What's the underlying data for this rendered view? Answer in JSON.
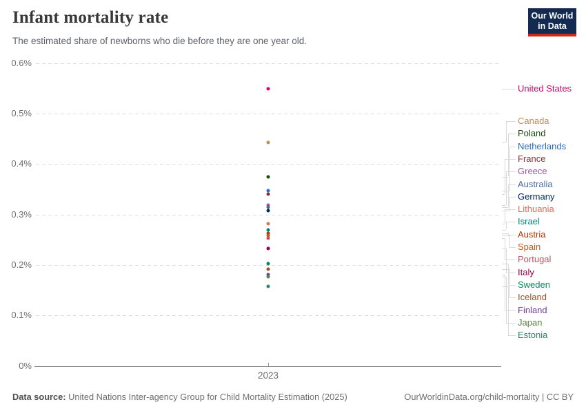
{
  "header": {
    "title": "Infant mortality rate",
    "subtitle": "The estimated share of newborns who die before they are one year old.",
    "logo": {
      "line1": "Our World",
      "line2": "in Data"
    }
  },
  "footer": {
    "source_label": "Data source:",
    "source_text": " United Nations Inter-agency Group for Child Mortality Estimation (2025)",
    "credit": "OurWorldinData.org/child-mortality | CC BY"
  },
  "chart_data": {
    "type": "scatter",
    "title": "Infant mortality rate",
    "subtitle": "The estimated share of newborns who die before they are one year old.",
    "xlabel": "",
    "ylabel": "",
    "unit": "%",
    "x": [
      2023
    ],
    "x_tick_label": "2023",
    "ylim": [
      0,
      0.6
    ],
    "grid": "dashed-horizontal",
    "legend_position": "right",
    "yticks": [
      {
        "value": 0.6,
        "label": "0.6%"
      },
      {
        "value": 0.5,
        "label": "0.5%"
      },
      {
        "value": 0.4,
        "label": "0.4%"
      },
      {
        "value": 0.3,
        "label": "0.3%"
      },
      {
        "value": 0.2,
        "label": "0.2%"
      },
      {
        "value": 0.1,
        "label": "0.1%"
      },
      {
        "value": 0,
        "label": "0%"
      }
    ],
    "series": [
      {
        "name": "United States",
        "year": 2023,
        "value": 0.549,
        "color": "#CF0A66"
      },
      {
        "name": "Canada",
        "year": 2023,
        "value": 0.443,
        "color": "#BC8E5A"
      },
      {
        "name": "Poland",
        "year": 2023,
        "value": 0.375,
        "color": "#18470F"
      },
      {
        "name": "Netherlands",
        "year": 2023,
        "value": 0.347,
        "color": "#286BBB"
      },
      {
        "name": "France",
        "year": 2023,
        "value": 0.34,
        "color": "#883039"
      },
      {
        "name": "Greece",
        "year": 2023,
        "value": 0.319,
        "color": "#A2559C"
      },
      {
        "name": "Australia",
        "year": 2023,
        "value": 0.314,
        "color": "#4C6A9C"
      },
      {
        "name": "Germany",
        "year": 2023,
        "value": 0.307,
        "color": "#00295B"
      },
      {
        "name": "Lithuania",
        "year": 2023,
        "value": 0.282,
        "color": "#E56E5A"
      },
      {
        "name": "Israel",
        "year": 2023,
        "value": 0.27,
        "color": "#00847E"
      },
      {
        "name": "Austria",
        "year": 2023,
        "value": 0.262,
        "color": "#B13507"
      },
      {
        "name": "Spain",
        "year": 2023,
        "value": 0.258,
        "color": "#C05917"
      },
      {
        "name": "Portugal",
        "year": 2023,
        "value": 0.253,
        "color": "#C15065"
      },
      {
        "name": "Italy",
        "year": 2023,
        "value": 0.232,
        "color": "#970046"
      },
      {
        "name": "Sweden",
        "year": 2023,
        "value": 0.202,
        "color": "#00875E"
      },
      {
        "name": "Iceland",
        "year": 2023,
        "value": 0.191,
        "color": "#9A5129"
      },
      {
        "name": "Finland",
        "year": 2023,
        "value": 0.181,
        "color": "#6D3E91"
      },
      {
        "name": "Japan",
        "year": 2023,
        "value": 0.176,
        "color": "#578145"
      },
      {
        "name": "Estonia",
        "year": 2023,
        "value": 0.158,
        "color": "#2C8465"
      }
    ]
  }
}
